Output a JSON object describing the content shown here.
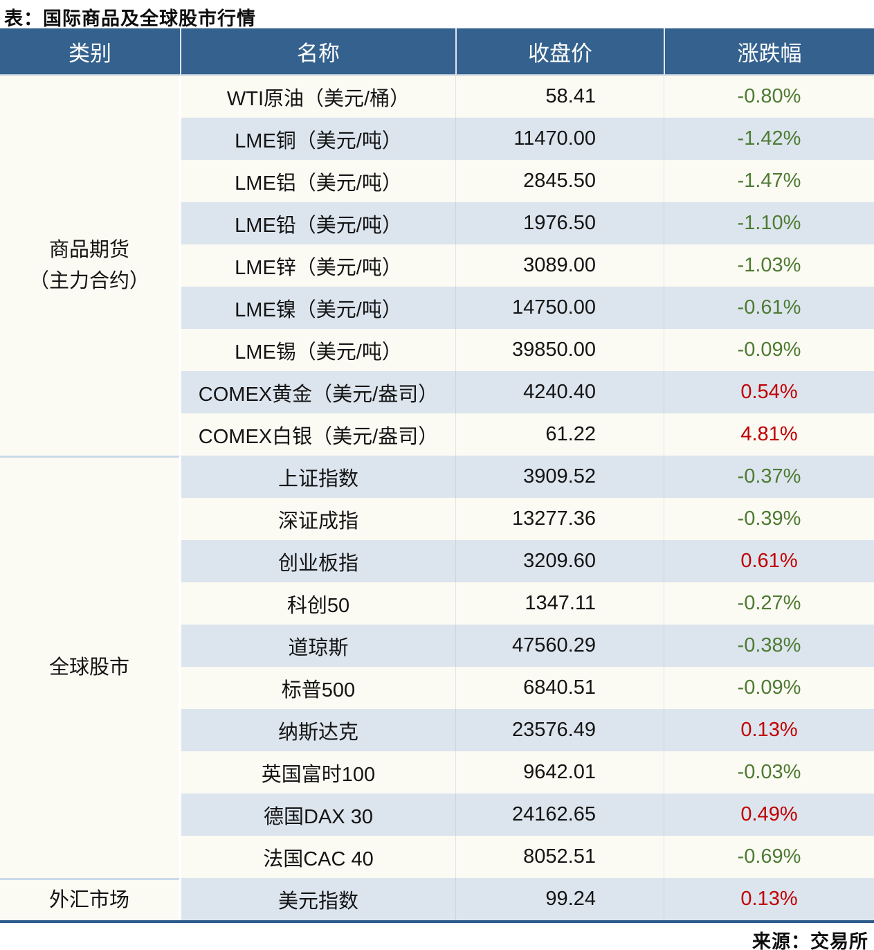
{
  "chart_data": {
    "type": "table",
    "title": "表：国际商品及全球股市行情",
    "source": "来源：交易所",
    "columns": [
      "类别",
      "名称",
      "收盘价",
      "涨跌幅"
    ],
    "groups": [
      {
        "category": [
          "商品期货",
          "（主力合约）"
        ],
        "rows": [
          {
            "name": "WTI原油（美元/桶）",
            "close": "58.41",
            "change": "-0.80%"
          },
          {
            "name": "LME铜（美元/吨）",
            "close": "11470.00",
            "change": "-1.42%"
          },
          {
            "name": "LME铝（美元/吨）",
            "close": "2845.50",
            "change": "-1.47%"
          },
          {
            "name": "LME铅（美元/吨）",
            "close": "1976.50",
            "change": "-1.10%"
          },
          {
            "name": "LME锌（美元/吨）",
            "close": "3089.00",
            "change": "-1.03%"
          },
          {
            "name": "LME镍（美元/吨）",
            "close": "14750.00",
            "change": "-0.61%"
          },
          {
            "name": "LME锡（美元/吨）",
            "close": "39850.00",
            "change": "-0.09%"
          },
          {
            "name": "COMEX黄金（美元/盎司）",
            "close": "4240.40",
            "change": "0.54%"
          },
          {
            "name": "COMEX白银（美元/盎司）",
            "close": "61.22",
            "change": "4.81%"
          }
        ]
      },
      {
        "category": [
          "全球股市"
        ],
        "rows": [
          {
            "name": "上证指数",
            "close": "3909.52",
            "change": "-0.37%"
          },
          {
            "name": "深证成指",
            "close": "13277.36",
            "change": "-0.39%"
          },
          {
            "name": "创业板指",
            "close": "3209.60",
            "change": "0.61%"
          },
          {
            "name": "科创50",
            "close": "1347.11",
            "change": "-0.27%"
          },
          {
            "name": "道琼斯",
            "close": "47560.29",
            "change": "-0.38%"
          },
          {
            "name": "标普500",
            "close": "6840.51",
            "change": "-0.09%"
          },
          {
            "name": "纳斯达克",
            "close": "23576.49",
            "change": "0.13%"
          },
          {
            "name": "英国富时100",
            "close": "9642.01",
            "change": "-0.03%"
          },
          {
            "name": "德国DAX 30",
            "close": "24162.65",
            "change": "0.49%"
          },
          {
            "name": "法国CAC 40",
            "close": "8052.51",
            "change": "-0.69%"
          }
        ]
      },
      {
        "category": [
          "外汇市场"
        ],
        "rows": [
          {
            "name": "美元指数",
            "close": "99.24",
            "change": "0.13%"
          }
        ]
      }
    ]
  },
  "colors": {
    "up": "#c00000",
    "down": "#4e7b32",
    "header_bg": "#34618d",
    "row_bg": "#fbfaf3",
    "row_alt_bg": "#dce5ee",
    "border_bottom": "#2d5c8c"
  }
}
